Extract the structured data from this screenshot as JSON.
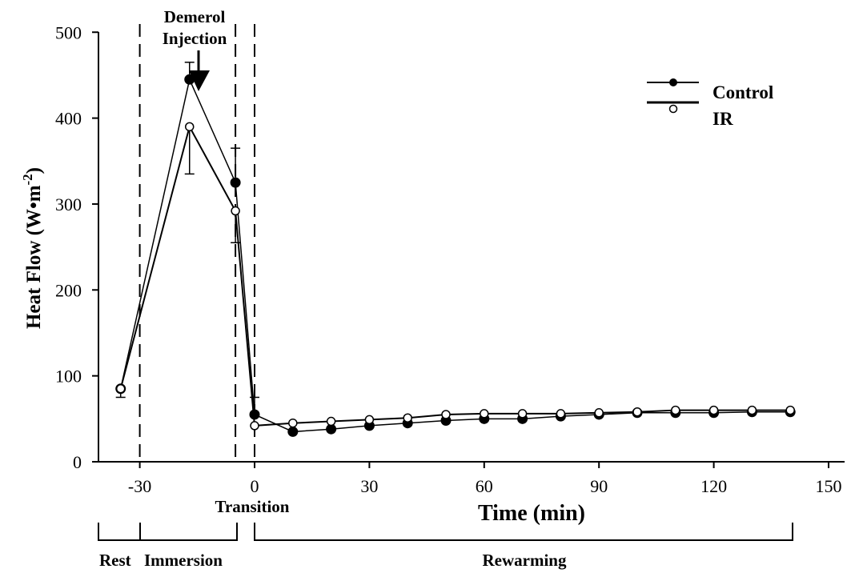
{
  "chart_data": {
    "type": "line",
    "title": "",
    "xlabel": "Time (min)",
    "ylabel": "Heat Flow (W•m-2)",
    "xlim": [
      -40,
      150
    ],
    "ylim": [
      0,
      500
    ],
    "x_ticks": [
      -30,
      0,
      30,
      60,
      90,
      120,
      150
    ],
    "y_ticks": [
      0,
      100,
      200,
      300,
      400,
      500
    ],
    "grid": false,
    "legend_position": "top-right",
    "series": [
      {
        "name": "Control",
        "marker": "filled-circle",
        "points": [
          {
            "x": -35,
            "y": 85
          },
          {
            "x": -17,
            "y": 445
          },
          {
            "x": -5,
            "y": 325
          },
          {
            "x": 0,
            "y": 55
          },
          {
            "x": 10,
            "y": 35
          },
          {
            "x": 20,
            "y": 38
          },
          {
            "x": 30,
            "y": 42
          },
          {
            "x": 40,
            "y": 45
          },
          {
            "x": 50,
            "y": 48
          },
          {
            "x": 60,
            "y": 50
          },
          {
            "x": 70,
            "y": 50
          },
          {
            "x": 80,
            "y": 53
          },
          {
            "x": 90,
            "y": 55
          },
          {
            "x": 100,
            "y": 57
          },
          {
            "x": 110,
            "y": 57
          },
          {
            "x": 120,
            "y": 57
          },
          {
            "x": 130,
            "y": 58
          },
          {
            "x": 140,
            "y": 58
          }
        ],
        "error_bars": [
          {
            "x": 0,
            "upper": 75
          }
        ]
      },
      {
        "name": "IR",
        "marker": "open-circle",
        "points": [
          {
            "x": -35,
            "y": 85
          },
          {
            "x": -17,
            "y": 390
          },
          {
            "x": -5,
            "y": 292
          },
          {
            "x": 0,
            "y": 42
          },
          {
            "x": 10,
            "y": 45
          },
          {
            "x": 20,
            "y": 47
          },
          {
            "x": 30,
            "y": 49
          },
          {
            "x": 40,
            "y": 51
          },
          {
            "x": 50,
            "y": 55
          },
          {
            "x": 60,
            "y": 56
          },
          {
            "x": 70,
            "y": 56
          },
          {
            "x": 80,
            "y": 56
          },
          {
            "x": 90,
            "y": 57
          },
          {
            "x": 100,
            "y": 58
          },
          {
            "x": 110,
            "y": 60
          },
          {
            "x": 120,
            "y": 60
          },
          {
            "x": 130,
            "y": 60
          },
          {
            "x": 140,
            "y": 60
          }
        ],
        "error_bars": [
          {
            "x": -35,
            "lower": 75
          },
          {
            "x": -17,
            "lower": 335
          },
          {
            "x": -5,
            "lower": 255
          }
        ]
      }
    ],
    "control_error_bars_extra": [
      {
        "x": -17,
        "upper": 465
      },
      {
        "x": -5,
        "upper": 365
      }
    ],
    "vertical_dashed_lines": [
      -30,
      -5,
      0
    ],
    "annotation": {
      "line1": "Demerol",
      "line2": "Injection",
      "x": -15
    },
    "phases": [
      {
        "label": "Rest",
        "start": -40,
        "end": -30
      },
      {
        "label": "Immersion",
        "start": -30,
        "end": -5
      },
      {
        "label": "Transition",
        "start": -5,
        "end": 0
      },
      {
        "label": "Rewarming",
        "start": 0,
        "end": 140
      }
    ]
  }
}
